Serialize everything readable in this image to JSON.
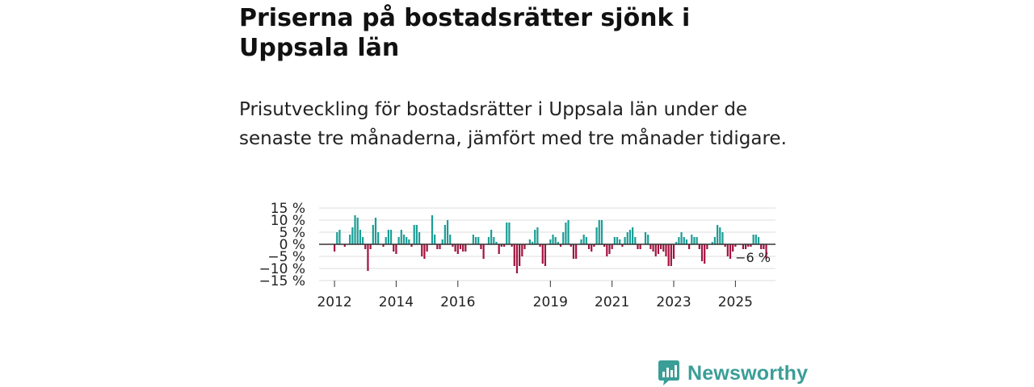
{
  "title": "Priserna på bostadsrätter sjönk i Uppsala län",
  "subtitle": "Prisutveckling för bostadsrätter i Uppsala län under de senaste tre månaderna, jämfört med tre månader tidigare.",
  "brand": {
    "name": "Newsworthy",
    "color": "#3a9e97",
    "icon": "chart-bars-icon"
  },
  "colors": {
    "positive": "#1a9e96",
    "negative": "#a3123f",
    "zero_line": "#333333",
    "grid": "#dddddd"
  },
  "chart_data": {
    "type": "bar",
    "title": "Priserna på bostadsrätter sjönk i Uppsala län",
    "xlabel": "",
    "ylabel": "",
    "ylim": [
      -15,
      15
    ],
    "y_ticks": [
      15,
      10,
      5,
      0,
      -5,
      -10,
      -15
    ],
    "y_tick_labels": [
      "15 %",
      "10 %",
      "5 %",
      "0 %",
      "−5 %",
      "−10 %",
      "−15 %"
    ],
    "x_range": [
      2011.5,
      2026.3
    ],
    "x_ticks": [
      {
        "year": 2012,
        "label": "2012"
      },
      {
        "year": 2014,
        "label": "2014"
      },
      {
        "year": 2016,
        "label": "2016"
      },
      {
        "year": 2019,
        "label": "2019"
      },
      {
        "year": 2021,
        "label": "2021"
      },
      {
        "year": 2023,
        "label": "2023"
      },
      {
        "year": 2025,
        "label": "2025"
      }
    ],
    "start": {
      "year": 2012,
      "month": 1
    },
    "unit": "%",
    "values": [
      -3,
      5,
      6,
      0,
      -1,
      0,
      4,
      7,
      12,
      11,
      6,
      3,
      -2,
      -11,
      -2,
      8,
      11,
      5,
      0,
      -1,
      3,
      6,
      6,
      -3,
      -4,
      3,
      6,
      4,
      3,
      2,
      -1,
      8,
      8,
      5,
      -5,
      -6,
      -3,
      0,
      12,
      4,
      -2,
      -2,
      2,
      8,
      10,
      4,
      -1,
      -3,
      -4,
      -2,
      -3,
      -3,
      0,
      0,
      4,
      3,
      3,
      -2,
      -6,
      0,
      3,
      6,
      3,
      1,
      -4,
      -1,
      -1,
      9,
      9,
      -1,
      -9,
      -12,
      -9,
      -5,
      -2,
      0,
      2,
      1,
      6,
      7,
      -1,
      -8,
      -9,
      0,
      2,
      4,
      3,
      1,
      -1,
      5,
      9,
      10,
      -1,
      -6,
      -6,
      0,
      2,
      4,
      3,
      -2,
      -3,
      -1,
      7,
      10,
      10,
      -1,
      -5,
      -4,
      -2,
      3,
      3,
      2,
      -1,
      3,
      5,
      6,
      7,
      3,
      -2,
      -2,
      0,
      5,
      4,
      -2,
      -3,
      -5,
      -4,
      -2,
      -3,
      -5,
      -9,
      -9,
      -6,
      1,
      3,
      5,
      3,
      2,
      -2,
      4,
      3,
      3,
      -2,
      -7,
      -8,
      -2,
      0,
      1,
      3,
      8,
      7,
      5,
      -1,
      -5,
      -6,
      -3,
      -1,
      0,
      0,
      -2,
      -2,
      -1,
      -1,
      4,
      4,
      3,
      -2,
      -2,
      -6
    ],
    "annotation": "−6 %"
  }
}
